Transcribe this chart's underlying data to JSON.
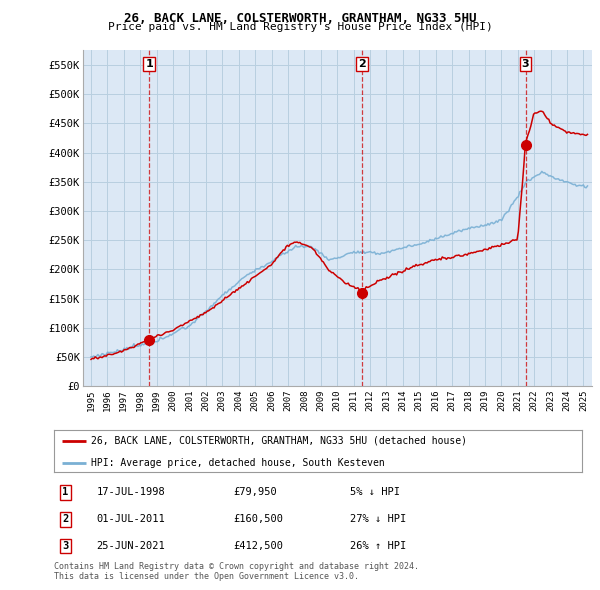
{
  "title1": "26, BACK LANE, COLSTERWORTH, GRANTHAM, NG33 5HU",
  "title2": "Price paid vs. HM Land Registry's House Price Index (HPI)",
  "red_line_label": "26, BACK LANE, COLSTERWORTH, GRANTHAM, NG33 5HU (detached house)",
  "blue_line_label": "HPI: Average price, detached house, South Kesteven",
  "transactions": [
    {
      "num": 1,
      "date": "17-JUL-1998",
      "price": "£79,950",
      "hpi": "5% ↓ HPI",
      "year": 1998.54,
      "value": 79950
    },
    {
      "num": 2,
      "date": "01-JUL-2011",
      "price": "£160,500",
      "hpi": "27% ↓ HPI",
      "year": 2011.5,
      "value": 160500
    },
    {
      "num": 3,
      "date": "25-JUN-2021",
      "price": "£412,500",
      "hpi": "26% ↑ HPI",
      "year": 2021.48,
      "value": 412500
    }
  ],
  "footnote1": "Contains HM Land Registry data © Crown copyright and database right 2024.",
  "footnote2": "This data is licensed under the Open Government Licence v3.0.",
  "ylim": [
    0,
    575000
  ],
  "yticks": [
    0,
    50000,
    100000,
    150000,
    200000,
    250000,
    300000,
    350000,
    400000,
    450000,
    500000,
    550000
  ],
  "ytick_labels": [
    "£0",
    "£50K",
    "£100K",
    "£150K",
    "£200K",
    "£250K",
    "£300K",
    "£350K",
    "£400K",
    "£450K",
    "£500K",
    "£550K"
  ],
  "xlim": [
    1994.5,
    2025.5
  ],
  "xticks": [
    1995,
    1996,
    1997,
    1998,
    1999,
    2000,
    2001,
    2002,
    2003,
    2004,
    2005,
    2006,
    2007,
    2008,
    2009,
    2010,
    2011,
    2012,
    2013,
    2014,
    2015,
    2016,
    2017,
    2018,
    2019,
    2020,
    2021,
    2022,
    2023,
    2024,
    2025
  ],
  "red_color": "#cc0000",
  "blue_color": "#7ab0d4",
  "plot_bg": "#dce8f5",
  "marker_color": "#cc0000",
  "dashed_color": "#cc0000",
  "background_color": "#ffffff",
  "grid_color": "#b8cfe0"
}
